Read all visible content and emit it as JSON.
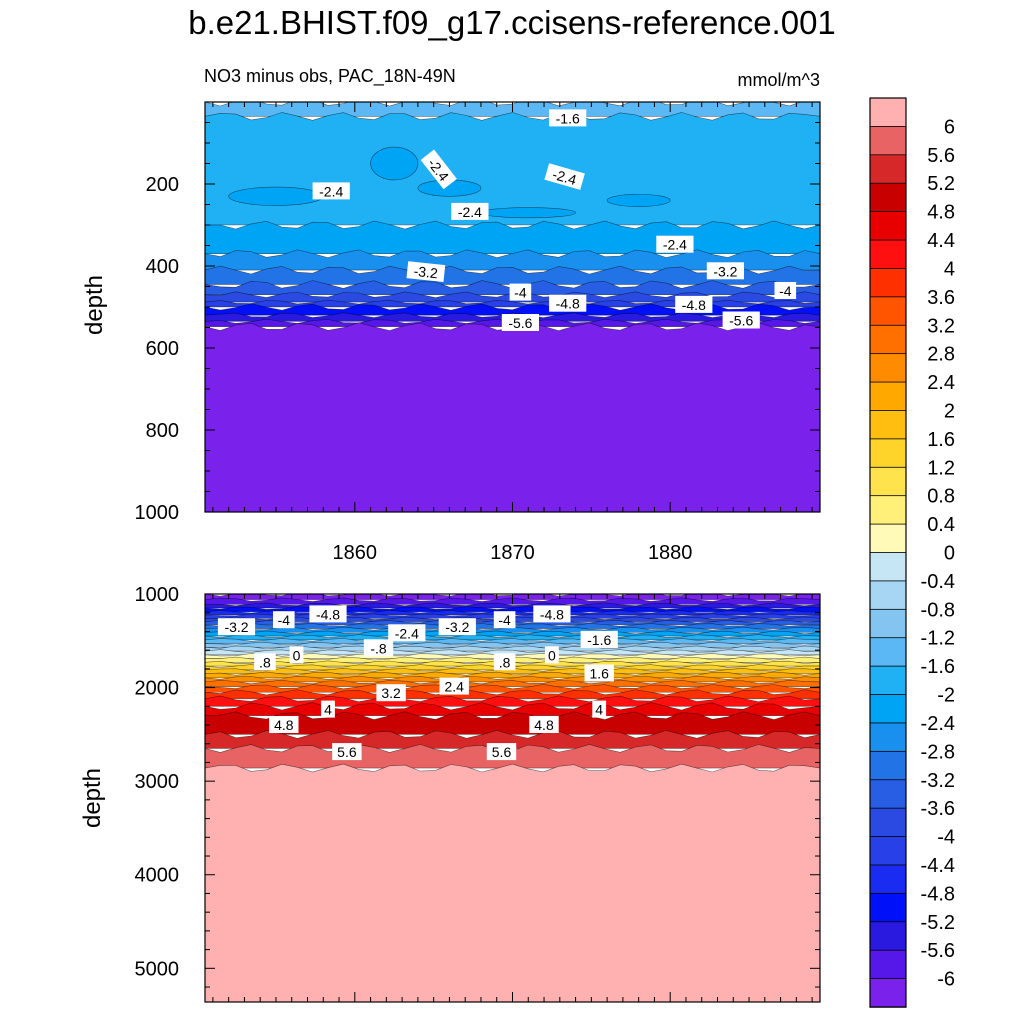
{
  "title": "b.e21.BHIST.f09_g17.ccisens-reference.001",
  "chart_data": {
    "type": "heatmap",
    "subtitle_left": "NO3 minus obs, PAC_18N-49N",
    "subtitle_right": "mmol/m^3",
    "ylabel": "depth",
    "x_range": [
      1850.5,
      1889.5
    ],
    "x_ticks": [
      1860,
      1870,
      1880
    ],
    "colorbar": {
      "labels": [
        "6",
        "5.6",
        "5.2",
        "4.8",
        "4.4",
        "4",
        "3.6",
        "3.2",
        "2.8",
        "2.4",
        "2",
        "1.6",
        "1.2",
        "0.8",
        "0.4",
        "0",
        "-0.4",
        "-0.8",
        "-1.2",
        "-1.6",
        "-2",
        "-2.4",
        "-2.8",
        "-3.2",
        "-3.6",
        "-4",
        "-4.4",
        "-4.8",
        "-5.2",
        "-5.6",
        "-6"
      ],
      "colors": [
        "#ffb0b0",
        "#e86464",
        "#d62828",
        "#c80000",
        "#e80000",
        "#ff1010",
        "#ff3000",
        "#ff5500",
        "#ff7000",
        "#ff8c00",
        "#ffa800",
        "#ffbe10",
        "#ffd42a",
        "#ffe34c",
        "#fff07a",
        "#fffab8",
        "#c6e6f6",
        "#a6d6f4",
        "#84c4f0",
        "#5cb8f4",
        "#20b0f4",
        "#00a4f4",
        "#1a90ee",
        "#2274e6",
        "#285ee4",
        "#2a4ae2",
        "#2840e8",
        "#1a2cf2",
        "#0010f8",
        "#2a1ae0",
        "#5518e8",
        "#7a22ec"
      ]
    },
    "panels": [
      {
        "name": "upper",
        "y_range": [
          0,
          1000
        ],
        "y_ticks": [
          200,
          400,
          600,
          800,
          1000
        ],
        "bands": [
          {
            "top": 0,
            "bottom": 35,
            "color": "#5cb8f4"
          },
          {
            "top": 35,
            "bottom": 300,
            "color": "#20b0f4"
          },
          {
            "top": 300,
            "bottom": 370,
            "color": "#00a4f4"
          },
          {
            "top": 370,
            "bottom": 410,
            "color": "#1a90ee"
          },
          {
            "top": 410,
            "bottom": 445,
            "color": "#2274e6"
          },
          {
            "top": 445,
            "bottom": 470,
            "color": "#285ee4"
          },
          {
            "top": 470,
            "bottom": 488,
            "color": "#2a4ae2"
          },
          {
            "top": 488,
            "bottom": 500,
            "color": "#2840e8"
          },
          {
            "top": 500,
            "bottom": 520,
            "color": "#0010f8"
          },
          {
            "top": 520,
            "bottom": 535,
            "color": "#2a1ae0"
          },
          {
            "top": 535,
            "bottom": 548,
            "color": "#5518e8"
          },
          {
            "top": 548,
            "bottom": 1000,
            "color": "#7a22ec"
          }
        ],
        "blobs": [
          {
            "x": 1855,
            "y": 230,
            "w": 6,
            "h": 45,
            "color": "#00a4f4"
          },
          {
            "x": 1862.5,
            "y": 150,
            "w": 3,
            "h": 80,
            "color": "#00a4f4"
          },
          {
            "x": 1866,
            "y": 210,
            "w": 4,
            "h": 40,
            "color": "#00a4f4"
          },
          {
            "x": 1871,
            "y": 270,
            "w": 6,
            "h": 25,
            "color": "#00a4f4"
          },
          {
            "x": 1878,
            "y": 240,
            "w": 4,
            "h": 30,
            "color": "#00a4f4"
          }
        ],
        "labels": [
          {
            "text": "-1.6",
            "x": 1873.5,
            "y": 40,
            "rot": 0
          },
          {
            "text": "-2.4",
            "x": 1865.3,
            "y": 165,
            "rot": 52
          },
          {
            "text": "-2.4",
            "x": 1873.3,
            "y": 183,
            "rot": 16
          },
          {
            "text": "-2.4",
            "x": 1858.5,
            "y": 218,
            "rot": 0
          },
          {
            "text": "-2.4",
            "x": 1867.3,
            "y": 268,
            "rot": 0
          },
          {
            "text": "-2.4",
            "x": 1880.3,
            "y": 348,
            "rot": 0
          },
          {
            "text": "-3.2",
            "x": 1864.5,
            "y": 415,
            "rot": 6
          },
          {
            "text": "-3.2",
            "x": 1883.5,
            "y": 413,
            "rot": 0
          },
          {
            "text": "-4",
            "x": 1870.5,
            "y": 465,
            "rot": 0
          },
          {
            "text": "-4",
            "x": 1887.3,
            "y": 461,
            "rot": 0
          },
          {
            "text": "-4.8",
            "x": 1873.5,
            "y": 492,
            "rot": 0
          },
          {
            "text": "-4.8",
            "x": 1881.5,
            "y": 495,
            "rot": 0
          },
          {
            "text": "-5.6",
            "x": 1870.5,
            "y": 539,
            "rot": 0
          },
          {
            "text": "-5.6",
            "x": 1884.5,
            "y": 533,
            "rot": 0
          }
        ]
      },
      {
        "name": "lower",
        "y_range": [
          1000,
          5360
        ],
        "y_ticks": [
          1000,
          2000,
          3000,
          4000,
          5000
        ],
        "bands": [
          {
            "top": 1000,
            "bottom": 1060,
            "color": "#7a22ec"
          },
          {
            "top": 1060,
            "bottom": 1110,
            "color": "#5518e8"
          },
          {
            "top": 1110,
            "bottom": 1150,
            "color": "#2a1ae0"
          },
          {
            "top": 1150,
            "bottom": 1190,
            "color": "#0010f8"
          },
          {
            "top": 1190,
            "bottom": 1225,
            "color": "#1a2cf2"
          },
          {
            "top": 1225,
            "bottom": 1260,
            "color": "#2840e8"
          },
          {
            "top": 1260,
            "bottom": 1295,
            "color": "#2a4ae2"
          },
          {
            "top": 1295,
            "bottom": 1330,
            "color": "#285ee4"
          },
          {
            "top": 1330,
            "bottom": 1370,
            "color": "#2274e6"
          },
          {
            "top": 1370,
            "bottom": 1410,
            "color": "#1a90ee"
          },
          {
            "top": 1410,
            "bottom": 1450,
            "color": "#00a4f4"
          },
          {
            "top": 1450,
            "bottom": 1490,
            "color": "#20b0f4"
          },
          {
            "top": 1490,
            "bottom": 1530,
            "color": "#5cb8f4"
          },
          {
            "top": 1530,
            "bottom": 1570,
            "color": "#84c4f0"
          },
          {
            "top": 1570,
            "bottom": 1610,
            "color": "#a6d6f4"
          },
          {
            "top": 1610,
            "bottom": 1650,
            "color": "#c6e6f6"
          },
          {
            "top": 1650,
            "bottom": 1690,
            "color": "#fffab8"
          },
          {
            "top": 1690,
            "bottom": 1730,
            "color": "#fff07a"
          },
          {
            "top": 1730,
            "bottom": 1770,
            "color": "#ffe34c"
          },
          {
            "top": 1770,
            "bottom": 1810,
            "color": "#ffd42a"
          },
          {
            "top": 1810,
            "bottom": 1850,
            "color": "#ffbe10"
          },
          {
            "top": 1850,
            "bottom": 1895,
            "color": "#ffa800"
          },
          {
            "top": 1895,
            "bottom": 1940,
            "color": "#ff8c00"
          },
          {
            "top": 1940,
            "bottom": 1990,
            "color": "#ff7000"
          },
          {
            "top": 1990,
            "bottom": 2050,
            "color": "#ff5500"
          },
          {
            "top": 2050,
            "bottom": 2120,
            "color": "#ff3000"
          },
          {
            "top": 2120,
            "bottom": 2200,
            "color": "#ff1010"
          },
          {
            "top": 2200,
            "bottom": 2300,
            "color": "#e80000"
          },
          {
            "top": 2300,
            "bottom": 2500,
            "color": "#c80000"
          },
          {
            "top": 2500,
            "bottom": 2650,
            "color": "#d62828"
          },
          {
            "top": 2650,
            "bottom": 2860,
            "color": "#e86464"
          },
          {
            "top": 2860,
            "bottom": 5360,
            "color": "#ffb0b0"
          }
        ],
        "blobs": [],
        "labels": [
          {
            "text": "-3.2",
            "x": 1852.5,
            "y": 1355,
            "rot": 0
          },
          {
            "text": "-4",
            "x": 1855.5,
            "y": 1280,
            "rot": 0
          },
          {
            "text": "-4.8",
            "x": 1858.3,
            "y": 1218,
            "rot": 0
          },
          {
            "text": "-2.4",
            "x": 1863.3,
            "y": 1420,
            "rot": 0
          },
          {
            "text": "-3.2",
            "x": 1866.5,
            "y": 1355,
            "rot": 0
          },
          {
            "text": "-4",
            "x": 1869.5,
            "y": 1280,
            "rot": 0
          },
          {
            "text": "-4.8",
            "x": 1872.5,
            "y": 1218,
            "rot": 0
          },
          {
            "text": "-1.6",
            "x": 1875.5,
            "y": 1490,
            "rot": 0
          },
          {
            "text": "-.8",
            "x": 1861.5,
            "y": 1580,
            "rot": 0
          },
          {
            "text": "0",
            "x": 1856.3,
            "y": 1655,
            "rot": 0
          },
          {
            "text": "0",
            "x": 1872.5,
            "y": 1655,
            "rot": 0
          },
          {
            "text": ".8",
            "x": 1854.3,
            "y": 1730,
            "rot": 0
          },
          {
            "text": ".8",
            "x": 1869.5,
            "y": 1730,
            "rot": 0
          },
          {
            "text": "1.6",
            "x": 1875.5,
            "y": 1850,
            "rot": 0
          },
          {
            "text": "2.4",
            "x": 1866.3,
            "y": 1990,
            "rot": 0
          },
          {
            "text": "3.2",
            "x": 1862.3,
            "y": 2060,
            "rot": 0
          },
          {
            "text": "4",
            "x": 1858.3,
            "y": 2235,
            "rot": 0
          },
          {
            "text": "4",
            "x": 1875.5,
            "y": 2235,
            "rot": 0
          },
          {
            "text": "4.8",
            "x": 1855.5,
            "y": 2400,
            "rot": 0
          },
          {
            "text": "4.8",
            "x": 1872.0,
            "y": 2400,
            "rot": 0
          },
          {
            "text": "5.6",
            "x": 1859.5,
            "y": 2690,
            "rot": 0
          },
          {
            "text": "5.6",
            "x": 1869.3,
            "y": 2690,
            "rot": 0
          }
        ]
      }
    ]
  }
}
